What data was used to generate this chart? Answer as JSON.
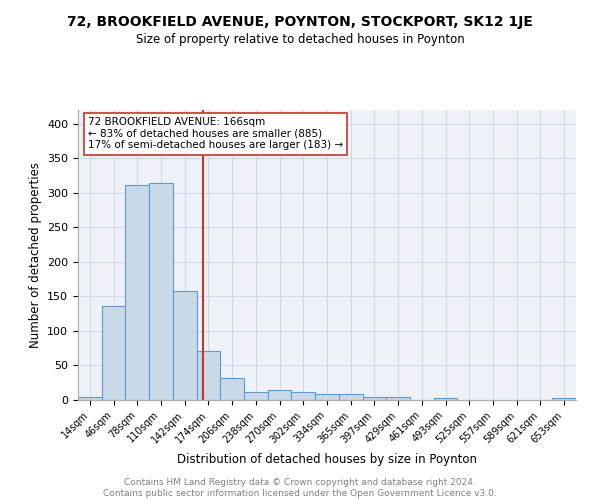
{
  "title": "72, BROOKFIELD AVENUE, POYNTON, STOCKPORT, SK12 1JE",
  "subtitle": "Size of property relative to detached houses in Poynton",
  "xlabel": "Distribution of detached houses by size in Poynton",
  "ylabel": "Number of detached properties",
  "bin_labels": [
    "14sqm",
    "46sqm",
    "78sqm",
    "110sqm",
    "142sqm",
    "174sqm",
    "206sqm",
    "238sqm",
    "270sqm",
    "302sqm",
    "334sqm",
    "365sqm",
    "397sqm",
    "429sqm",
    "461sqm",
    "493sqm",
    "525sqm",
    "557sqm",
    "589sqm",
    "621sqm",
    "653sqm"
  ],
  "bin_values": [
    4,
    136,
    311,
    314,
    158,
    71,
    32,
    12,
    15,
    12,
    9,
    8,
    4,
    4,
    0,
    3,
    0,
    0,
    0,
    0,
    3
  ],
  "bar_color": "#c9d9e8",
  "bar_edge_color": "#5b9bd5",
  "vline_x_index": 4.75,
  "vline_color": "#c0392b",
  "annotation_text": "72 BROOKFIELD AVENUE: 166sqm\n← 83% of detached houses are smaller (885)\n17% of semi-detached houses are larger (183) →",
  "annotation_box_color": "white",
  "annotation_box_edgecolor": "#c0392b",
  "ylim": [
    0,
    420
  ],
  "yticks": [
    0,
    50,
    100,
    150,
    200,
    250,
    300,
    350,
    400
  ],
  "footer_text": "Contains HM Land Registry data © Crown copyright and database right 2024.\nContains public sector information licensed under the Open Government Licence v3.0.",
  "grid_color": "#d0d8e8",
  "bg_color": "#eef2f8"
}
